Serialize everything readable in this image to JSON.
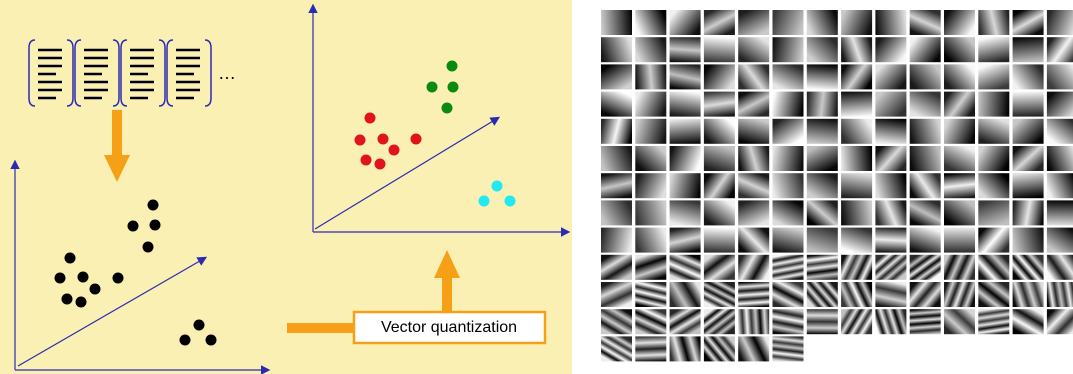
{
  "diagram": {
    "ellipsis": "…",
    "box_label": "Vector quantization"
  }
}
